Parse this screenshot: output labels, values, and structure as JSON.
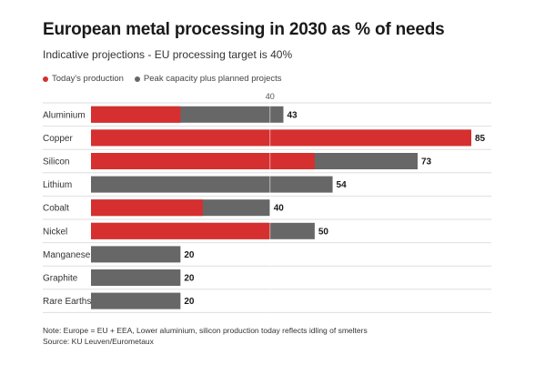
{
  "title": "European metal processing in 2030 as % of needs",
  "subtitle": "Indicative projections - EU processing target is 40%",
  "legend": {
    "production_label": "Today's production",
    "capacity_label": "Peak capacity plus planned projects"
  },
  "colors": {
    "production": "#d62f2f",
    "capacity": "#676767"
  },
  "notes": {
    "note": "Note: Europe = EU + EEA, Lower aluminium, silicon production today reflects idling of smelters",
    "source": "Source: KU Leuven/Eurometaux"
  },
  "chart_data": {
    "type": "bar",
    "orientation": "horizontal",
    "title": "European metal processing in 2030 as % of needs",
    "subtitle": "Indicative projections - EU processing target is 40%",
    "categories": [
      "Aluminium",
      "Copper",
      "Silicon",
      "Lithium",
      "Cobalt",
      "Nickel",
      "Manganese",
      "Graphite",
      "Rare Earths"
    ],
    "series": [
      {
        "name": "Today's production",
        "values": [
          20,
          85,
          50,
          0,
          25,
          40,
          0,
          0,
          0
        ]
      },
      {
        "name": "Peak capacity plus planned projects",
        "values": [
          43,
          85,
          73,
          54,
          40,
          50,
          20,
          20,
          20
        ]
      }
    ],
    "value_labels": [
      "43",
      "85",
      "73",
      "54",
      "40",
      "50",
      "20",
      "20",
      "20"
    ],
    "reference_line": {
      "value": 40,
      "label": "40"
    },
    "xlim": [
      0,
      85
    ],
    "grid": false,
    "legend_position": "top-left"
  }
}
